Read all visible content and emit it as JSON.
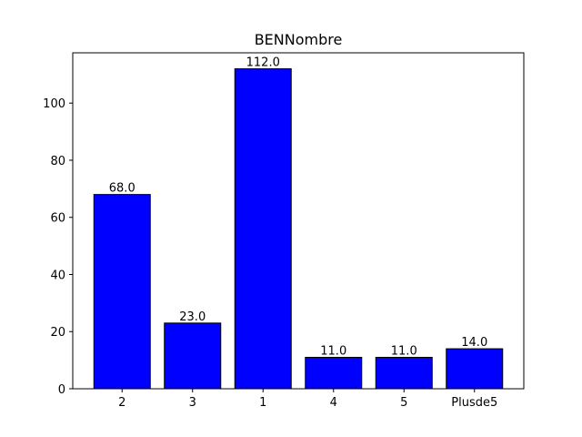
{
  "chart_data": {
    "type": "bar",
    "title": "BENNombre",
    "xlabel": "",
    "ylabel": "",
    "categories": [
      "2",
      "3",
      "1",
      "4",
      "5",
      "Plusde5"
    ],
    "values": [
      68.0,
      23.0,
      112.0,
      11.0,
      11.0,
      14.0
    ],
    "value_labels": [
      "68.0",
      "23.0",
      "112.0",
      "11.0",
      "11.0",
      "14.0"
    ],
    "ylim": [
      0,
      117.6
    ],
    "yticks": [
      0,
      20,
      40,
      60,
      80,
      100
    ],
    "bar_color": "#0000ff",
    "edge_color": "#000000",
    "grid": false,
    "legend": "none"
  }
}
